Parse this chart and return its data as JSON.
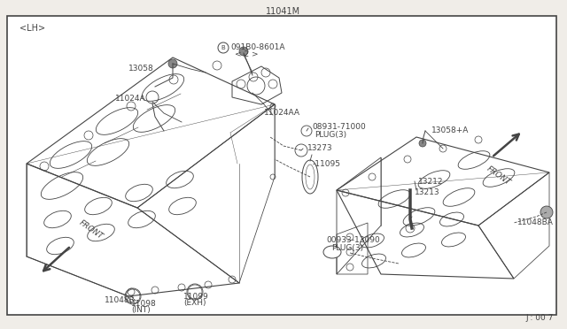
{
  "bg_color": "#f0ede8",
  "border_color": "#555555",
  "line_color": "#444444",
  "fig_w": 6.4,
  "fig_h": 3.72,
  "dpi": 100,
  "title": "11041M",
  "subtitle": "J : 00 7",
  "lh_label": "<LH>"
}
